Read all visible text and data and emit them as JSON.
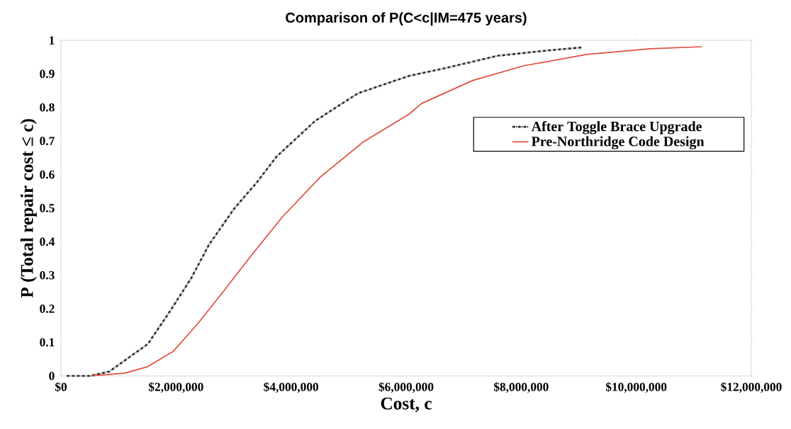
{
  "chart_data": {
    "type": "line",
    "title": "Comparison of P(C<c|IM=475 years)",
    "xlabel": "Cost, c",
    "ylabel": "P (Total repair cost ≤ c)",
    "xlim": [
      0,
      12000000
    ],
    "ylim": [
      0,
      1
    ],
    "xticks": [
      {
        "value": 0,
        "label": "$0"
      },
      {
        "value": 2000000,
        "label": "$2,000,000"
      },
      {
        "value": 4000000,
        "label": "$4,000,000"
      },
      {
        "value": 6000000,
        "label": "$6,000,000"
      },
      {
        "value": 8000000,
        "label": "$8,000,000"
      },
      {
        "value": 10000000,
        "label": "$10,000,000"
      },
      {
        "value": 12000000,
        "label": "$12,000,000"
      }
    ],
    "yticks": [
      0,
      0.1,
      0.2,
      0.3,
      0.4,
      0.5,
      0.6,
      0.7,
      0.8,
      0.9,
      1
    ],
    "grid": false,
    "legend": "right",
    "marker": "none",
    "series": [
      {
        "name": "After Toggle Brace Upgrade",
        "color": "#2b2b2b",
        "line_style": "dotted",
        "x": [
          100000,
          500000,
          840000,
          1510000,
          1900000,
          2260000,
          2570000,
          3000000,
          3410000,
          3750000,
          4420000,
          5160000,
          6050000,
          6700000,
          7590000,
          8470000,
          9060000
        ],
        "values": [
          0,
          0,
          0.013,
          0.095,
          0.194,
          0.29,
          0.39,
          0.496,
          0.578,
          0.654,
          0.76,
          0.842,
          0.894,
          0.918,
          0.954,
          0.97,
          0.979
        ]
      },
      {
        "name": "Pre-Northridge Code Design",
        "color": "#e0503c",
        "line_style": "solid",
        "x": [
          530000,
          1110000,
          1500000,
          1950000,
          2380000,
          2830000,
          3310000,
          3840000,
          4510000,
          5260000,
          6050000,
          6270000,
          7150000,
          8040000,
          9140000,
          10240000,
          11140000
        ],
        "values": [
          0,
          0.008,
          0.027,
          0.073,
          0.156,
          0.253,
          0.359,
          0.472,
          0.593,
          0.698,
          0.78,
          0.812,
          0.88,
          0.924,
          0.958,
          0.975,
          0.981
        ]
      }
    ]
  }
}
